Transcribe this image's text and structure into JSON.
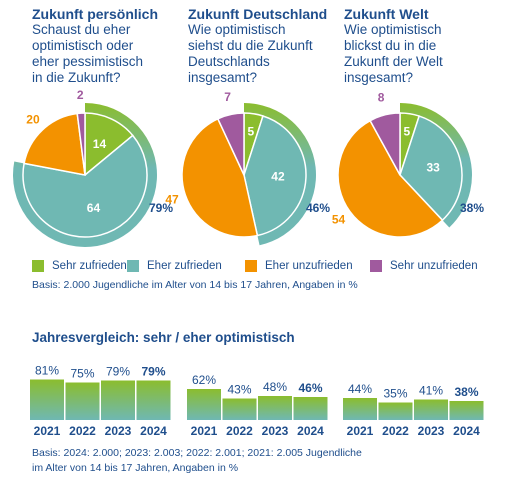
{
  "columns": [
    {
      "title": "Zukunft persönlich",
      "question_lines": [
        "Schaust du eher",
        "optimistisch oder",
        "eher pessimistisch",
        "in die Zukunft?"
      ]
    },
    {
      "title": "Zukunft Deutschland",
      "question_lines": [
        "Wie optimistisch",
        "siehst du die Zukunft",
        "Deutschlands",
        "insgesamt?"
      ]
    },
    {
      "title": "Zukunft Welt",
      "question_lines": [
        "Wie optimistisch",
        "blickst du in die",
        "Zukunft der Welt",
        "insgesamt?"
      ]
    }
  ],
  "legend": [
    {
      "label": "Sehr zufrieden",
      "color": "#8bbd2e"
    },
    {
      "label": "Eher zufrieden",
      "color": "#6fb8b3"
    },
    {
      "label": "Eher unzufrieden",
      "color": "#f39200"
    },
    {
      "label": "Sehr unzufrieden",
      "color": "#a05a9e"
    }
  ],
  "basis_top": "Basis: 2.000 Jugendliche im Alter von 14 bis 17 Jahren, Angaben in %",
  "section_title": "Jahresvergleich: sehr / eher optimistisch",
  "basis_bottom_lines": [
    "Basis: 2024: 2.000; 2023: 2.003; 2022: 2.001; 2021: 2.005 Jugendliche",
    "im Alter von 14 bis 17 Jahren, Angaben in %"
  ],
  "colors": {
    "text": "#1f4e8c",
    "sehr_zufrieden": "#8bbd2e",
    "eher_zufrieden": "#6fb8b3",
    "eher_unzufrieden": "#f39200",
    "sehr_unzufrieden": "#a05a9e",
    "bar_top": "#8bbd2e",
    "bar_bottom": "#6fb8b3"
  },
  "chart_data": [
    {
      "type": "pie",
      "title": "Zukunft persönlich",
      "categories": [
        "Sehr zufrieden",
        "Eher zufrieden",
        "Eher unzufrieden",
        "Sehr unzufrieden"
      ],
      "values": [
        14,
        64,
        20,
        2
      ],
      "value_labels": [
        "14",
        "64",
        "20",
        "2"
      ],
      "optimistic_total_label": "79%"
    },
    {
      "type": "pie",
      "title": "Zukunft Deutschland",
      "categories": [
        "Sehr zufrieden",
        "Eher zufrieden",
        "Eher unzufrieden",
        "Sehr unzufrieden"
      ],
      "values": [
        5,
        42,
        47,
        7
      ],
      "value_labels": [
        "5",
        "42",
        "47",
        "7"
      ],
      "optimistic_total_label": "46%"
    },
    {
      "type": "pie",
      "title": "Zukunft Welt",
      "categories": [
        "Sehr zufrieden",
        "Eher zufrieden",
        "Eher unzufrieden",
        "Sehr unzufrieden"
      ],
      "values": [
        5,
        33,
        54,
        8
      ],
      "value_labels": [
        "5",
        "33",
        "54",
        "8"
      ],
      "optimistic_total_label": "38%"
    },
    {
      "type": "bar",
      "title": "Jahresvergleich: sehr / eher optimistisch",
      "groups": [
        "Zukunft persönlich",
        "Zukunft Deutschland",
        "Zukunft Welt"
      ],
      "categories": [
        "2021",
        "2022",
        "2023",
        "2024"
      ],
      "series": [
        {
          "values": [
            81,
            75,
            79,
            79
          ],
          "labels": [
            "81%",
            "75%",
            "79%",
            "79%"
          ]
        },
        {
          "values": [
            62,
            43,
            48,
            46
          ],
          "labels": [
            "62%",
            "43%",
            "48%",
            "46%"
          ]
        },
        {
          "values": [
            44,
            35,
            41,
            38
          ],
          "labels": [
            "44%",
            "35%",
            "41%",
            "38%"
          ]
        }
      ],
      "highlight_last": true
    }
  ]
}
